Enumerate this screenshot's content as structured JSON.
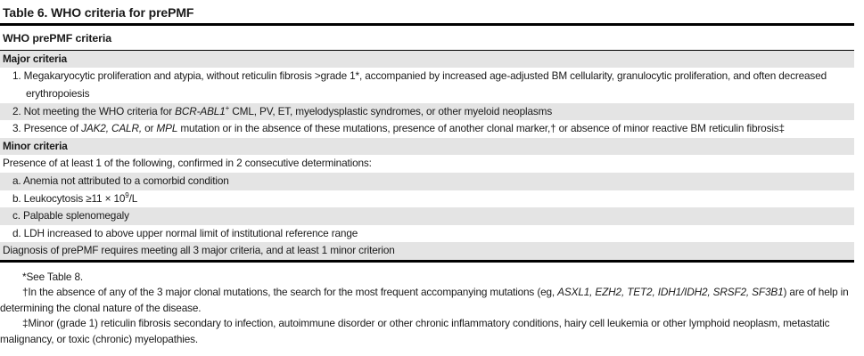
{
  "colors": {
    "row_shade": "#e4e4e4",
    "rule": "#000000",
    "text": "#1a1a1a",
    "background": "#ffffff"
  },
  "title": "Table 6. WHO criteria for prePMF",
  "table": {
    "column_header": "WHO prePMF criteria",
    "rows": [
      {
        "id": "major-criteria-header",
        "segments": [
          {
            "t": "Major criteria",
            "b": true
          }
        ]
      },
      {
        "id": "major-criterion-1",
        "segments": [
          {
            "t": "1. Megakaryocytic proliferation and atypia, without reticulin fibrosis >grade 1*, accompanied by increased age-adjusted BM cellularity, granulocytic proliferation, and often decreased erythropoiesis"
          }
        ]
      },
      {
        "id": "major-criterion-2",
        "segments": [
          {
            "t": "2. Not meeting the WHO criteria for "
          },
          {
            "t": "BCR-ABL1",
            "i": true
          },
          {
            "t": "+",
            "sup": true
          },
          {
            "t": " CML, PV, ET, myelodysplastic syndromes, or other myeloid neoplasms"
          }
        ]
      },
      {
        "id": "major-criterion-3",
        "segments": [
          {
            "t": "3. Presence of "
          },
          {
            "t": "JAK2, CALR,",
            "i": true
          },
          {
            "t": " or "
          },
          {
            "t": "MPL",
            "i": true
          },
          {
            "t": " mutation or in the absence of these mutations, presence of another clonal marker,† or absence of minor reactive BM reticulin fibrosis‡"
          }
        ]
      },
      {
        "id": "minor-criteria-header",
        "segments": [
          {
            "t": "Minor criteria",
            "b": true
          }
        ]
      },
      {
        "id": "minor-criteria-intro",
        "segments": [
          {
            "t": "Presence of at least 1 of the following, confirmed in 2 consecutive determinations:"
          }
        ]
      },
      {
        "id": "minor-criterion-a",
        "segments": [
          {
            "t": "a. Anemia not attributed to a comorbid condition"
          }
        ]
      },
      {
        "id": "minor-criterion-b",
        "segments": [
          {
            "t": "b. Leukocytosis ≥11 × 10"
          },
          {
            "t": "9",
            "sup": true
          },
          {
            "t": "/L"
          }
        ]
      },
      {
        "id": "minor-criterion-c",
        "segments": [
          {
            "t": "c. Palpable splenomegaly"
          }
        ]
      },
      {
        "id": "minor-criterion-d",
        "segments": [
          {
            "t": "d. LDH increased to above upper normal limit of institutional reference range"
          }
        ]
      },
      {
        "id": "diagnosis-summary",
        "segments": [
          {
            "t": "Diagnosis of prePMF requires meeting all 3 major criteria, and at least 1 minor criterion"
          }
        ]
      }
    ]
  },
  "footnotes": [
    {
      "id": "asterisk",
      "segments": [
        {
          "t": "*See Table 8."
        }
      ]
    },
    {
      "id": "dagger",
      "segments": [
        {
          "t": "†In the absence of any of the 3 major clonal mutations, the search for the most frequent accompanying mutations (eg, "
        },
        {
          "t": "ASXL1, EZH2, TET2, IDH1/IDH2, SRSF2, SF3B1",
          "i": true
        },
        {
          "t": ") are of help in determining the clonal nature of the disease."
        }
      ]
    },
    {
      "id": "double-dagger",
      "segments": [
        {
          "t": "‡Minor (grade 1) reticulin fibrosis secondary to infection, autoimmune disorder or other chronic inflammatory conditions, hairy cell leukemia or other lymphoid neoplasm, metastatic malignancy, or toxic (chronic) myelopathies."
        }
      ]
    }
  ]
}
